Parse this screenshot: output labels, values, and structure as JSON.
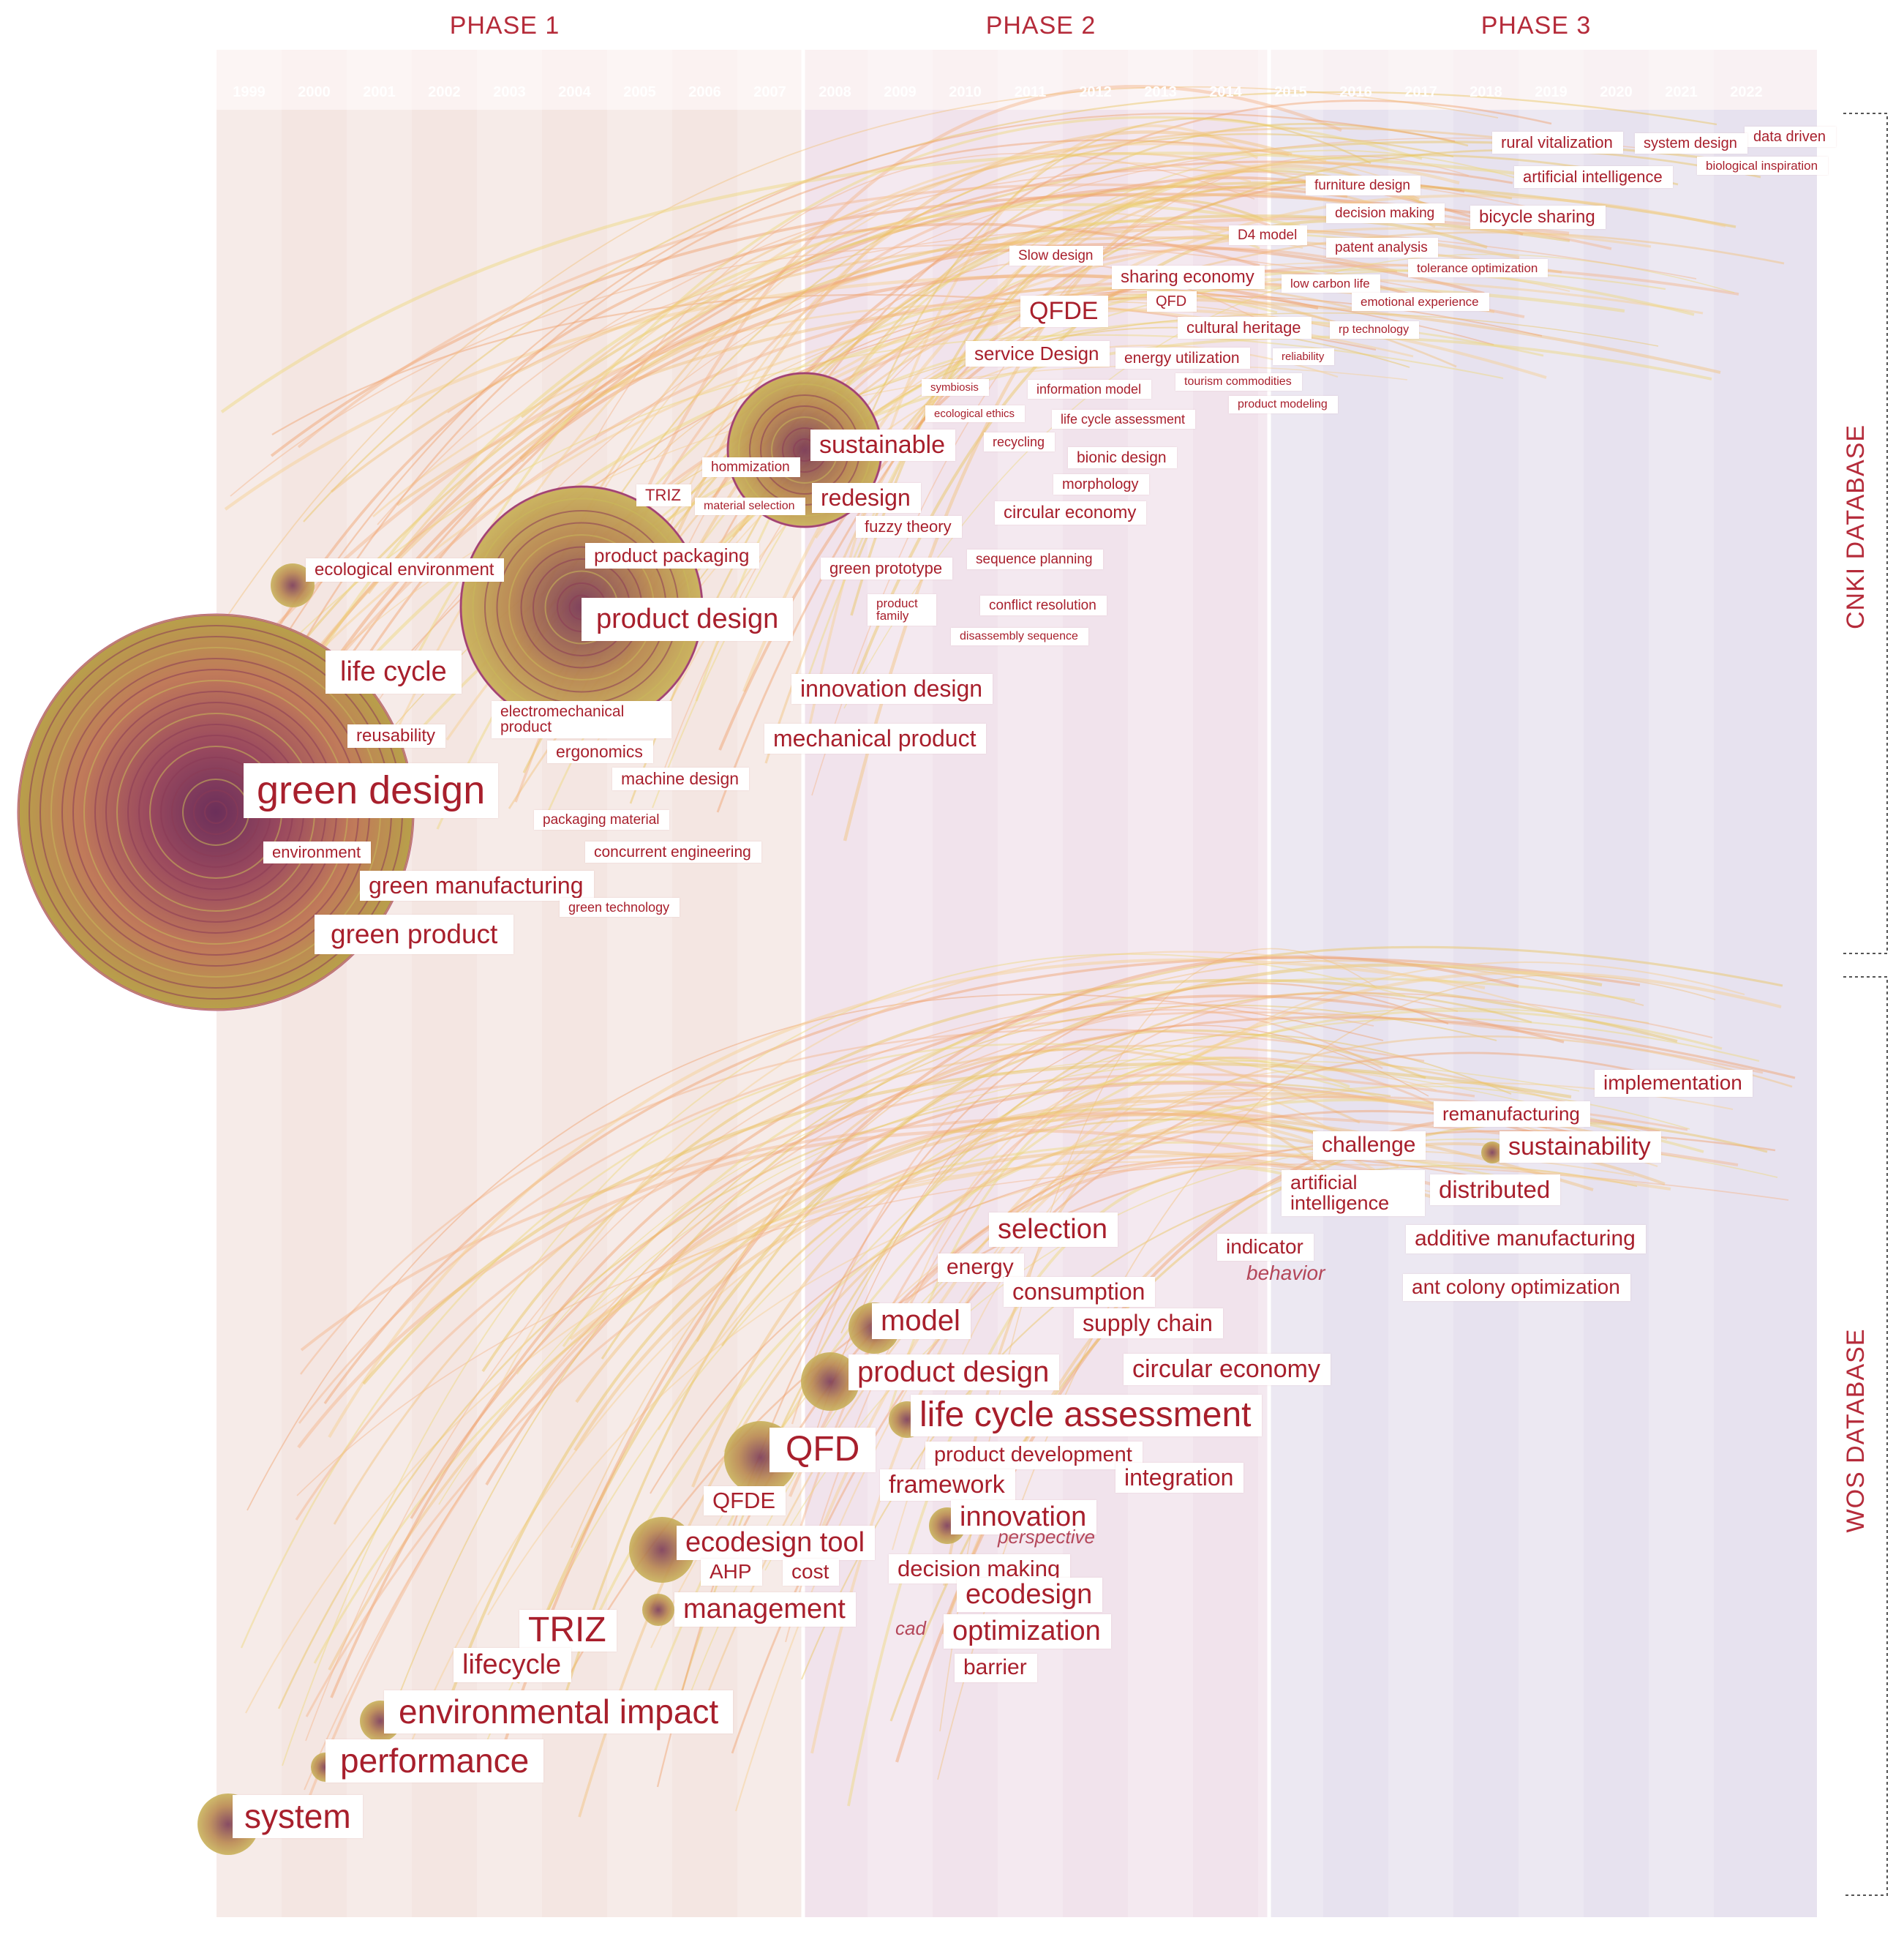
{
  "phases": [
    "PHASE 1",
    "PHASE 2",
    "PHASE 3"
  ],
  "years": [
    "1999",
    "2000",
    "2001",
    "2002",
    "2003",
    "2004",
    "2005",
    "2006",
    "2007",
    "2008",
    "2009",
    "2010",
    "2011",
    "2012",
    "2013",
    "2014",
    "2015",
    "2016",
    "2017",
    "2018",
    "2019",
    "2020",
    "2021",
    "2022"
  ],
  "databases": {
    "cnki": "CNKI DATABASE",
    "wos": "WOS DATABASE"
  },
  "colors": {
    "accent": "#a81f2c",
    "phase1_bg": "#f4e6e2",
    "phase2_bg": "#f1e3ec",
    "phase3_bg": "#e7e2ef",
    "node": "#a29a3e",
    "link": "#f0b870"
  },
  "cnki_keywords": [
    {
      "label": "data driven"
    },
    {
      "label": "rural vitalization"
    },
    {
      "label": "system design"
    },
    {
      "label": "biological inspiration"
    },
    {
      "label": "artificial intelligence"
    },
    {
      "label": "furniture design"
    },
    {
      "label": "decision making"
    },
    {
      "label": "bicycle sharing"
    },
    {
      "label": "D4 model"
    },
    {
      "label": "patent analysis"
    },
    {
      "label": "Slow design"
    },
    {
      "label": "tolerance optimization"
    },
    {
      "label": "sharing economy"
    },
    {
      "label": "low carbon life"
    },
    {
      "label": "QFDE"
    },
    {
      "label": "QFD"
    },
    {
      "label": "emotional experience"
    },
    {
      "label": "cultural heritage"
    },
    {
      "label": "rp technology"
    },
    {
      "label": "service Design"
    },
    {
      "label": "energy utilization"
    },
    {
      "label": "reliability"
    },
    {
      "label": "symbiosis"
    },
    {
      "label": "information model"
    },
    {
      "label": "tourism commodities"
    },
    {
      "label": "ecological ethics"
    },
    {
      "label": "life cycle assessment"
    },
    {
      "label": "product modeling"
    },
    {
      "label": "sustainable"
    },
    {
      "label": "recycling"
    },
    {
      "label": "hommization"
    },
    {
      "label": "bionic design"
    },
    {
      "label": "TRIZ"
    },
    {
      "label": "morphology"
    },
    {
      "label": "material selection"
    },
    {
      "label": "redesign"
    },
    {
      "label": "circular economy"
    },
    {
      "label": "fuzzy theory"
    },
    {
      "label": "ecological environment"
    },
    {
      "label": "product packaging"
    },
    {
      "label": "green prototype"
    },
    {
      "label": "sequence planning"
    },
    {
      "label": "product family"
    },
    {
      "label": "conflict resolution"
    },
    {
      "label": "product design"
    },
    {
      "label": "disassembly sequence"
    },
    {
      "label": "life cycle"
    },
    {
      "label": "innovation design"
    },
    {
      "label": "electromechanical product"
    },
    {
      "label": "reusability"
    },
    {
      "label": "mechanical product"
    },
    {
      "label": "ergonomics"
    },
    {
      "label": "machine design"
    },
    {
      "label": "green design"
    },
    {
      "label": "packaging material"
    },
    {
      "label": "environment"
    },
    {
      "label": "concurrent engineering"
    },
    {
      "label": "green manufacturing"
    },
    {
      "label": "green technology"
    },
    {
      "label": "green product"
    }
  ],
  "wos_keywords": [
    {
      "label": "implementation"
    },
    {
      "label": "remanufacturing"
    },
    {
      "label": "challenge"
    },
    {
      "label": "sustainability"
    },
    {
      "label": "artificial intelligence"
    },
    {
      "label": "distributed"
    },
    {
      "label": "selection"
    },
    {
      "label": "indicator"
    },
    {
      "label": "additive manufacturing"
    },
    {
      "label": "energy"
    },
    {
      "label": "behavior"
    },
    {
      "label": "consumption"
    },
    {
      "label": "ant colony optimization"
    },
    {
      "label": "model"
    },
    {
      "label": "supply chain"
    },
    {
      "label": "product design"
    },
    {
      "label": "circular economy"
    },
    {
      "label": "life cycle assessment"
    },
    {
      "label": "QFD"
    },
    {
      "label": "product development"
    },
    {
      "label": "framework"
    },
    {
      "label": "integration"
    },
    {
      "label": "QFDE"
    },
    {
      "label": "innovation"
    },
    {
      "label": "perspective"
    },
    {
      "label": "ecodesign tool"
    },
    {
      "label": "decision making"
    },
    {
      "label": "AHP"
    },
    {
      "label": "cost"
    },
    {
      "label": "ecodesign"
    },
    {
      "label": "management"
    },
    {
      "label": "cad"
    },
    {
      "label": "TRIZ"
    },
    {
      "label": "optimization"
    },
    {
      "label": "barrier"
    },
    {
      "label": "lifecycle"
    },
    {
      "label": "environmental impact"
    },
    {
      "label": "performance"
    },
    {
      "label": "system"
    }
  ]
}
